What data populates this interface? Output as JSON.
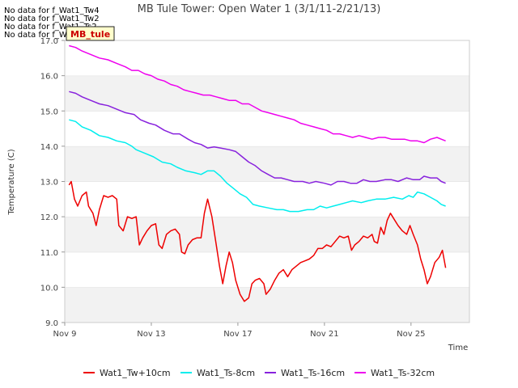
{
  "no_data_messages": [
    "No data for f_Wat1_Tw4",
    "No data for f_Wat1_Tw2",
    "No data for f_Wat1_Ts2",
    "No data for f_Wat1_Tw4"
  ],
  "badge_label": "MB_tule",
  "chart_data": {
    "type": "line",
    "title": "MB Tule Tower: Open Water 1 (3/1/11-2/21/13)",
    "xlabel": "Time",
    "ylabel": "Temperature (C)",
    "xlim": [
      9.0,
      27.7
    ],
    "ylim": [
      9.0,
      17.0
    ],
    "x_ticks": [
      {
        "value": 9,
        "label": "Nov 9"
      },
      {
        "value": 13,
        "label": "Nov 13"
      },
      {
        "value": 17,
        "label": "Nov 17"
      },
      {
        "value": 21,
        "label": "Nov 21"
      },
      {
        "value": 25,
        "label": "Nov 25"
      }
    ],
    "y_ticks": [
      "9.0",
      "10.0",
      "11.0",
      "12.0",
      "13.0",
      "14.0",
      "15.0",
      "16.0",
      "17.0"
    ],
    "grid": "horizontal bands",
    "legend_position": "bottom",
    "series": [
      {
        "name": "Wat1_Tw+10cm",
        "color": "#ee0000",
        "points": [
          [
            9.2,
            12.9
          ],
          [
            9.3,
            13.0
          ],
          [
            9.45,
            12.5
          ],
          [
            9.6,
            12.3
          ],
          [
            9.8,
            12.6
          ],
          [
            10.0,
            12.7
          ],
          [
            10.1,
            12.3
          ],
          [
            10.3,
            12.1
          ],
          [
            10.45,
            11.75
          ],
          [
            10.6,
            12.2
          ],
          [
            10.8,
            12.6
          ],
          [
            11.0,
            12.55
          ],
          [
            11.2,
            12.6
          ],
          [
            11.4,
            12.5
          ],
          [
            11.5,
            11.75
          ],
          [
            11.7,
            11.6
          ],
          [
            11.9,
            12.0
          ],
          [
            12.1,
            11.95
          ],
          [
            12.3,
            12.0
          ],
          [
            12.45,
            11.2
          ],
          [
            12.6,
            11.4
          ],
          [
            12.8,
            11.6
          ],
          [
            13.0,
            11.75
          ],
          [
            13.2,
            11.8
          ],
          [
            13.35,
            11.2
          ],
          [
            13.5,
            11.1
          ],
          [
            13.7,
            11.5
          ],
          [
            13.9,
            11.6
          ],
          [
            14.1,
            11.65
          ],
          [
            14.3,
            11.5
          ],
          [
            14.4,
            11.0
          ],
          [
            14.55,
            10.95
          ],
          [
            14.7,
            11.2
          ],
          [
            14.9,
            11.35
          ],
          [
            15.1,
            11.4
          ],
          [
            15.3,
            11.4
          ],
          [
            15.45,
            12.1
          ],
          [
            15.6,
            12.5
          ],
          [
            15.8,
            12.0
          ],
          [
            16.0,
            11.2
          ],
          [
            16.15,
            10.6
          ],
          [
            16.3,
            10.1
          ],
          [
            16.45,
            10.6
          ],
          [
            16.6,
            11.0
          ],
          [
            16.75,
            10.7
          ],
          [
            16.9,
            10.2
          ],
          [
            17.1,
            9.8
          ],
          [
            17.3,
            9.6
          ],
          [
            17.5,
            9.7
          ],
          [
            17.65,
            10.1
          ],
          [
            17.8,
            10.2
          ],
          [
            18.0,
            10.25
          ],
          [
            18.2,
            10.1
          ],
          [
            18.3,
            9.8
          ],
          [
            18.5,
            9.95
          ],
          [
            18.7,
            10.2
          ],
          [
            18.9,
            10.4
          ],
          [
            19.1,
            10.5
          ],
          [
            19.3,
            10.3
          ],
          [
            19.5,
            10.5
          ],
          [
            19.7,
            10.6
          ],
          [
            19.9,
            10.7
          ],
          [
            20.1,
            10.75
          ],
          [
            20.3,
            10.8
          ],
          [
            20.5,
            10.9
          ],
          [
            20.7,
            11.1
          ],
          [
            20.9,
            11.1
          ],
          [
            21.1,
            11.2
          ],
          [
            21.3,
            11.15
          ],
          [
            21.5,
            11.3
          ],
          [
            21.7,
            11.45
          ],
          [
            21.9,
            11.4
          ],
          [
            22.1,
            11.45
          ],
          [
            22.25,
            11.05
          ],
          [
            22.4,
            11.2
          ],
          [
            22.6,
            11.3
          ],
          [
            22.8,
            11.45
          ],
          [
            23.0,
            11.4
          ],
          [
            23.2,
            11.5
          ],
          [
            23.3,
            11.3
          ],
          [
            23.45,
            11.25
          ],
          [
            23.6,
            11.7
          ],
          [
            23.75,
            11.5
          ],
          [
            23.9,
            11.9
          ],
          [
            24.05,
            12.1
          ],
          [
            24.2,
            11.95
          ],
          [
            24.4,
            11.75
          ],
          [
            24.6,
            11.6
          ],
          [
            24.8,
            11.5
          ],
          [
            24.95,
            11.75
          ],
          [
            25.1,
            11.5
          ],
          [
            25.3,
            11.2
          ],
          [
            25.45,
            10.8
          ],
          [
            25.6,
            10.5
          ],
          [
            25.75,
            10.1
          ],
          [
            25.9,
            10.3
          ],
          [
            26.1,
            10.7
          ],
          [
            26.3,
            10.85
          ],
          [
            26.45,
            11.05
          ],
          [
            26.6,
            10.55
          ]
        ]
      },
      {
        "name": "Wat1_Ts-8cm",
        "color": "#00eeee",
        "points": [
          [
            9.2,
            14.75
          ],
          [
            9.5,
            14.7
          ],
          [
            9.8,
            14.55
          ],
          [
            10.2,
            14.45
          ],
          [
            10.6,
            14.3
          ],
          [
            11.0,
            14.25
          ],
          [
            11.4,
            14.15
          ],
          [
            11.8,
            14.1
          ],
          [
            12.1,
            14.0
          ],
          [
            12.3,
            13.9
          ],
          [
            12.7,
            13.8
          ],
          [
            13.1,
            13.7
          ],
          [
            13.5,
            13.55
          ],
          [
            13.9,
            13.5
          ],
          [
            14.2,
            13.4
          ],
          [
            14.6,
            13.3
          ],
          [
            15.0,
            13.25
          ],
          [
            15.3,
            13.2
          ],
          [
            15.6,
            13.3
          ],
          [
            15.9,
            13.3
          ],
          [
            16.2,
            13.15
          ],
          [
            16.5,
            12.95
          ],
          [
            16.8,
            12.8
          ],
          [
            17.1,
            12.65
          ],
          [
            17.4,
            12.55
          ],
          [
            17.7,
            12.35
          ],
          [
            18.0,
            12.3
          ],
          [
            18.4,
            12.25
          ],
          [
            18.8,
            12.2
          ],
          [
            19.1,
            12.2
          ],
          [
            19.4,
            12.15
          ],
          [
            19.8,
            12.15
          ],
          [
            20.2,
            12.2
          ],
          [
            20.5,
            12.2
          ],
          [
            20.8,
            12.3
          ],
          [
            21.1,
            12.25
          ],
          [
            21.4,
            12.3
          ],
          [
            21.7,
            12.35
          ],
          [
            22.0,
            12.4
          ],
          [
            22.3,
            12.45
          ],
          [
            22.7,
            12.4
          ],
          [
            23.0,
            12.45
          ],
          [
            23.4,
            12.5
          ],
          [
            23.8,
            12.5
          ],
          [
            24.2,
            12.55
          ],
          [
            24.6,
            12.5
          ],
          [
            24.9,
            12.6
          ],
          [
            25.1,
            12.55
          ],
          [
            25.3,
            12.7
          ],
          [
            25.6,
            12.65
          ],
          [
            25.9,
            12.55
          ],
          [
            26.2,
            12.45
          ],
          [
            26.4,
            12.35
          ],
          [
            26.6,
            12.3
          ]
        ]
      },
      {
        "name": "Wat1_Ts-16cm",
        "color": "#8822dd",
        "points": [
          [
            9.2,
            15.55
          ],
          [
            9.5,
            15.5
          ],
          [
            9.8,
            15.4
          ],
          [
            10.2,
            15.3
          ],
          [
            10.6,
            15.2
          ],
          [
            11.0,
            15.15
          ],
          [
            11.4,
            15.05
          ],
          [
            11.8,
            14.95
          ],
          [
            12.2,
            14.9
          ],
          [
            12.5,
            14.75
          ],
          [
            12.9,
            14.65
          ],
          [
            13.2,
            14.6
          ],
          [
            13.6,
            14.45
          ],
          [
            14.0,
            14.35
          ],
          [
            14.3,
            14.35
          ],
          [
            14.7,
            14.2
          ],
          [
            15.0,
            14.1
          ],
          [
            15.3,
            14.05
          ],
          [
            15.6,
            13.95
          ],
          [
            15.9,
            13.98
          ],
          [
            16.2,
            13.95
          ],
          [
            16.6,
            13.9
          ],
          [
            16.9,
            13.85
          ],
          [
            17.2,
            13.7
          ],
          [
            17.5,
            13.55
          ],
          [
            17.8,
            13.45
          ],
          [
            18.1,
            13.3
          ],
          [
            18.4,
            13.2
          ],
          [
            18.7,
            13.1
          ],
          [
            19.0,
            13.1
          ],
          [
            19.3,
            13.05
          ],
          [
            19.6,
            13.0
          ],
          [
            20.0,
            13.0
          ],
          [
            20.3,
            12.95
          ],
          [
            20.6,
            13.0
          ],
          [
            21.0,
            12.95
          ],
          [
            21.3,
            12.9
          ],
          [
            21.6,
            13.0
          ],
          [
            21.9,
            13.0
          ],
          [
            22.2,
            12.95
          ],
          [
            22.5,
            12.95
          ],
          [
            22.8,
            13.05
          ],
          [
            23.1,
            13.0
          ],
          [
            23.4,
            13.0
          ],
          [
            23.8,
            13.05
          ],
          [
            24.1,
            13.05
          ],
          [
            24.4,
            13.0
          ],
          [
            24.8,
            13.1
          ],
          [
            25.1,
            13.05
          ],
          [
            25.4,
            13.05
          ],
          [
            25.6,
            13.15
          ],
          [
            25.9,
            13.1
          ],
          [
            26.2,
            13.1
          ],
          [
            26.4,
            13.0
          ],
          [
            26.6,
            12.95
          ]
        ]
      },
      {
        "name": "Wat1_Ts-32cm",
        "color": "#ee00ee",
        "points": [
          [
            9.2,
            16.85
          ],
          [
            9.5,
            16.8
          ],
          [
            9.8,
            16.7
          ],
          [
            10.2,
            16.6
          ],
          [
            10.6,
            16.5
          ],
          [
            11.0,
            16.45
          ],
          [
            11.4,
            16.35
          ],
          [
            11.8,
            16.25
          ],
          [
            12.1,
            16.15
          ],
          [
            12.4,
            16.15
          ],
          [
            12.7,
            16.05
          ],
          [
            13.0,
            16.0
          ],
          [
            13.3,
            15.9
          ],
          [
            13.6,
            15.85
          ],
          [
            13.9,
            15.75
          ],
          [
            14.2,
            15.7
          ],
          [
            14.5,
            15.6
          ],
          [
            14.8,
            15.55
          ],
          [
            15.1,
            15.5
          ],
          [
            15.4,
            15.45
          ],
          [
            15.7,
            15.45
          ],
          [
            16.0,
            15.4
          ],
          [
            16.3,
            15.35
          ],
          [
            16.6,
            15.3
          ],
          [
            16.9,
            15.3
          ],
          [
            17.2,
            15.2
          ],
          [
            17.5,
            15.2
          ],
          [
            17.8,
            15.1
          ],
          [
            18.1,
            15.0
          ],
          [
            18.4,
            14.95
          ],
          [
            18.7,
            14.9
          ],
          [
            19.0,
            14.85
          ],
          [
            19.3,
            14.8
          ],
          [
            19.6,
            14.75
          ],
          [
            19.9,
            14.65
          ],
          [
            20.2,
            14.6
          ],
          [
            20.5,
            14.55
          ],
          [
            20.8,
            14.5
          ],
          [
            21.1,
            14.45
          ],
          [
            21.4,
            14.35
          ],
          [
            21.7,
            14.35
          ],
          [
            22.0,
            14.3
          ],
          [
            22.3,
            14.25
          ],
          [
            22.6,
            14.3
          ],
          [
            22.9,
            14.25
          ],
          [
            23.2,
            14.2
          ],
          [
            23.5,
            14.25
          ],
          [
            23.8,
            14.25
          ],
          [
            24.1,
            14.2
          ],
          [
            24.4,
            14.2
          ],
          [
            24.7,
            14.2
          ],
          [
            25.0,
            14.15
          ],
          [
            25.3,
            14.15
          ],
          [
            25.6,
            14.1
          ],
          [
            25.9,
            14.2
          ],
          [
            26.2,
            14.25
          ],
          [
            26.4,
            14.2
          ],
          [
            26.6,
            14.15
          ]
        ]
      }
    ]
  }
}
